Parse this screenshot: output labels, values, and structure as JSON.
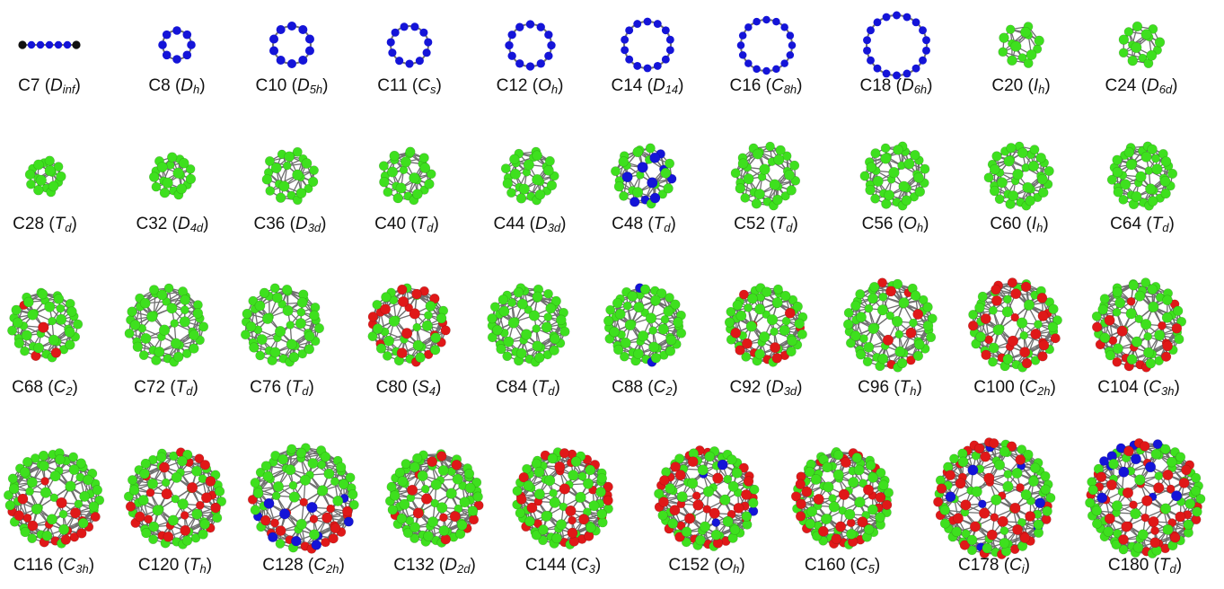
{
  "colors": {
    "green": "#3ee01e",
    "red": "#e01818",
    "blue": "#1414d8",
    "black": "#111111",
    "bond": "#6f6f6f"
  },
  "rows": [
    {
      "items": [
        {
          "name": "C7",
          "sym": "D",
          "sub": "inf",
          "style": "chain",
          "n": 7
        },
        {
          "name": "C8",
          "sym": "D",
          "sub": "h",
          "style": "ring",
          "n": 8
        },
        {
          "name": "C10",
          "sym": "D",
          "sub": "5h",
          "style": "ring",
          "n": 10
        },
        {
          "name": "C11",
          "sym": "C",
          "sub": "s",
          "style": "ring",
          "n": 11
        },
        {
          "name": "C12",
          "sym": "O",
          "sub": "h",
          "style": "ring",
          "n": 12
        },
        {
          "name": "C14",
          "sym": "D",
          "sub": "14",
          "style": "ring",
          "n": 14
        },
        {
          "name": "C16",
          "sym": "C",
          "sub": "8h",
          "style": "ring",
          "n": 16
        },
        {
          "name": "C18",
          "sym": "D",
          "sub": "6h",
          "style": "ring",
          "n": 18
        },
        {
          "name": "C20",
          "sym": "I",
          "sub": "h",
          "style": "cage",
          "n": 20
        },
        {
          "name": "C24",
          "sym": "D",
          "sub": "6d",
          "style": "cage",
          "n": 24
        }
      ]
    },
    {
      "items": [
        {
          "name": "C28",
          "sym": "T",
          "sub": "d",
          "style": "cage",
          "n": 28
        },
        {
          "name": "C32",
          "sym": "D",
          "sub": "4d",
          "style": "cage",
          "n": 32
        },
        {
          "name": "C36",
          "sym": "D",
          "sub": "3d",
          "style": "cage",
          "n": 36
        },
        {
          "name": "C40",
          "sym": "T",
          "sub": "d",
          "style": "cage",
          "n": 40
        },
        {
          "name": "C44",
          "sym": "D",
          "sub": "3d",
          "style": "cage",
          "n": 44
        },
        {
          "name": "C48",
          "sym": "T",
          "sub": "d",
          "style": "cage",
          "n": 48,
          "blue": 10
        },
        {
          "name": "C52",
          "sym": "T",
          "sub": "d",
          "style": "cage",
          "n": 52
        },
        {
          "name": "C56",
          "sym": "O",
          "sub": "h",
          "style": "cage",
          "n": 56
        },
        {
          "name": "C60",
          "sym": "I",
          "sub": "h",
          "style": "cage",
          "n": 60
        },
        {
          "name": "C64",
          "sym": "T",
          "sub": "d",
          "style": "cage",
          "n": 64
        }
      ]
    },
    {
      "items": [
        {
          "name": "C68",
          "sym": "C",
          "sub": "2",
          "style": "cage",
          "n": 68,
          "red": 4
        },
        {
          "name": "C72",
          "sym": "T",
          "sub": "d",
          "style": "cage",
          "n": 72
        },
        {
          "name": "C76",
          "sym": "T",
          "sub": "d",
          "style": "cage",
          "n": 76
        },
        {
          "name": "C80",
          "sym": "S",
          "sub": "4",
          "style": "cage",
          "n": 80,
          "red": 20
        },
        {
          "name": "C84",
          "sym": "T",
          "sub": "d",
          "style": "cage",
          "n": 84
        },
        {
          "name": "C88",
          "sym": "C",
          "sub": "2",
          "style": "cage",
          "n": 88,
          "blue": 2
        },
        {
          "name": "C92",
          "sym": "D",
          "sub": "3d",
          "style": "cage",
          "n": 92,
          "red": 12
        },
        {
          "name": "C96",
          "sym": "T",
          "sub": "h",
          "style": "cage",
          "n": 96,
          "red": 8
        },
        {
          "name": "C100",
          "sym": "C",
          "sub": "2h",
          "style": "cage",
          "n": 100,
          "red": 24
        },
        {
          "name": "C104",
          "sym": "C",
          "sub": "3h",
          "style": "cage",
          "n": 104,
          "red": 18
        }
      ]
    },
    {
      "items": [
        {
          "name": "C116",
          "sym": "C",
          "sub": "3h",
          "style": "cage",
          "n": 116,
          "red": 18
        },
        {
          "name": "C120",
          "sym": "T",
          "sub": "h",
          "style": "cage",
          "n": 120,
          "red": 24
        },
        {
          "name": "C128",
          "sym": "C",
          "sub": "2h",
          "style": "cage",
          "n": 128,
          "red": 20,
          "blue": 10
        },
        {
          "name": "C132",
          "sym": "D",
          "sub": "2d",
          "style": "cage",
          "n": 132,
          "red": 14
        },
        {
          "name": "C144",
          "sym": "C",
          "sub": "3",
          "style": "cage",
          "n": 144,
          "red": 30
        },
        {
          "name": "C152",
          "sym": "O",
          "sub": "h",
          "style": "cage",
          "n": 152,
          "red": 36,
          "blue": 4
        },
        {
          "name": "C160",
          "sym": "C",
          "sub": "5",
          "style": "cage",
          "n": 160,
          "red": 30
        },
        {
          "name": "C178",
          "sym": "C",
          "sub": "i",
          "style": "cage",
          "n": 178,
          "red": 40,
          "blue": 8
        },
        {
          "name": "C180",
          "sym": "T",
          "sub": "d",
          "style": "cage",
          "n": 180,
          "red": 40,
          "blue": 12
        }
      ]
    }
  ]
}
